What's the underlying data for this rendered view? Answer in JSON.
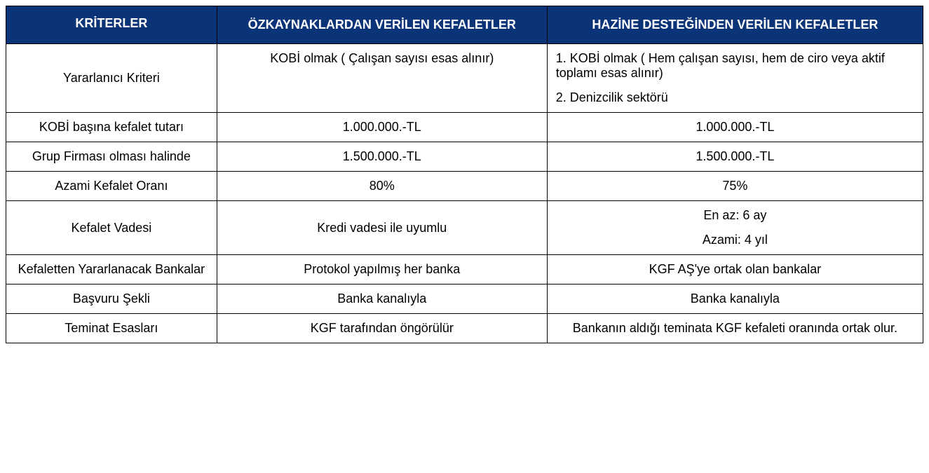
{
  "table": {
    "header_bg": "#0b3378",
    "header_fg": "#ffffff",
    "border_color": "#000000",
    "font_family": "Arial",
    "header_fontsize": 18,
    "body_fontsize": 18,
    "columns": [
      {
        "key": "kriterler",
        "label": "KRİTERLER",
        "width_pct": 23,
        "align": "center"
      },
      {
        "key": "ozkaynak",
        "label": "ÖZKAYNAKLARDAN  VERİLEN KEFALETLER",
        "width_pct": 36,
        "align": "center"
      },
      {
        "key": "hazine",
        "label": "HAZİNE DESTEĞİNDEN VERİLEN KEFALETLER",
        "width_pct": 41,
        "align": "left"
      }
    ],
    "rows": [
      {
        "kriterler": "Yararlanıcı Kriteri",
        "ozkaynak": "KOBİ olmak ( Çalışan sayısı esas alınır)",
        "hazine_lines": [
          "1. KOBİ olmak ( Hem çalışan sayısı, hem de ciro veya aktif toplamı esas alınır)",
          "2. Denizcilik sektörü"
        ],
        "hazine_align": "left",
        "oz_valign": "top"
      },
      {
        "kriterler": "KOBİ başına kefalet tutarı",
        "ozkaynak": "1.000.000.-TL",
        "hazine": "1.000.000.-TL",
        "hazine_align": "center"
      },
      {
        "kriterler": "Grup Firması olması halinde",
        "ozkaynak": "1.500.000.-TL",
        "hazine": "1.500.000.-TL",
        "hazine_align": "center"
      },
      {
        "kriterler": "Azami Kefalet Oranı",
        "ozkaynak": "80%",
        "hazine": "75%",
        "hazine_align": "center"
      },
      {
        "kriterler": "Kefalet Vadesi",
        "ozkaynak": "Kredi vadesi ile uyumlu",
        "hazine_lines": [
          "En az: 6 ay",
          "Azami: 4 yıl"
        ],
        "hazine_align": "center"
      },
      {
        "kriterler": "Kefaletten Yararlanacak Bankalar",
        "ozkaynak": "Protokol yapılmış her banka",
        "hazine": "KGF AŞ'ye ortak olan bankalar",
        "hazine_align": "center"
      },
      {
        "kriterler": "Başvuru Şekli",
        "ozkaynak": "Banka kanalıyla",
        "hazine": "Banka kanalıyla",
        "hazine_align": "center"
      },
      {
        "kriterler": "Teminat Esasları",
        "ozkaynak": "KGF tarafından öngörülür",
        "hazine": "Bankanın aldığı teminata KGF kefaleti oranında ortak olur.",
        "hazine_align": "center"
      }
    ]
  }
}
